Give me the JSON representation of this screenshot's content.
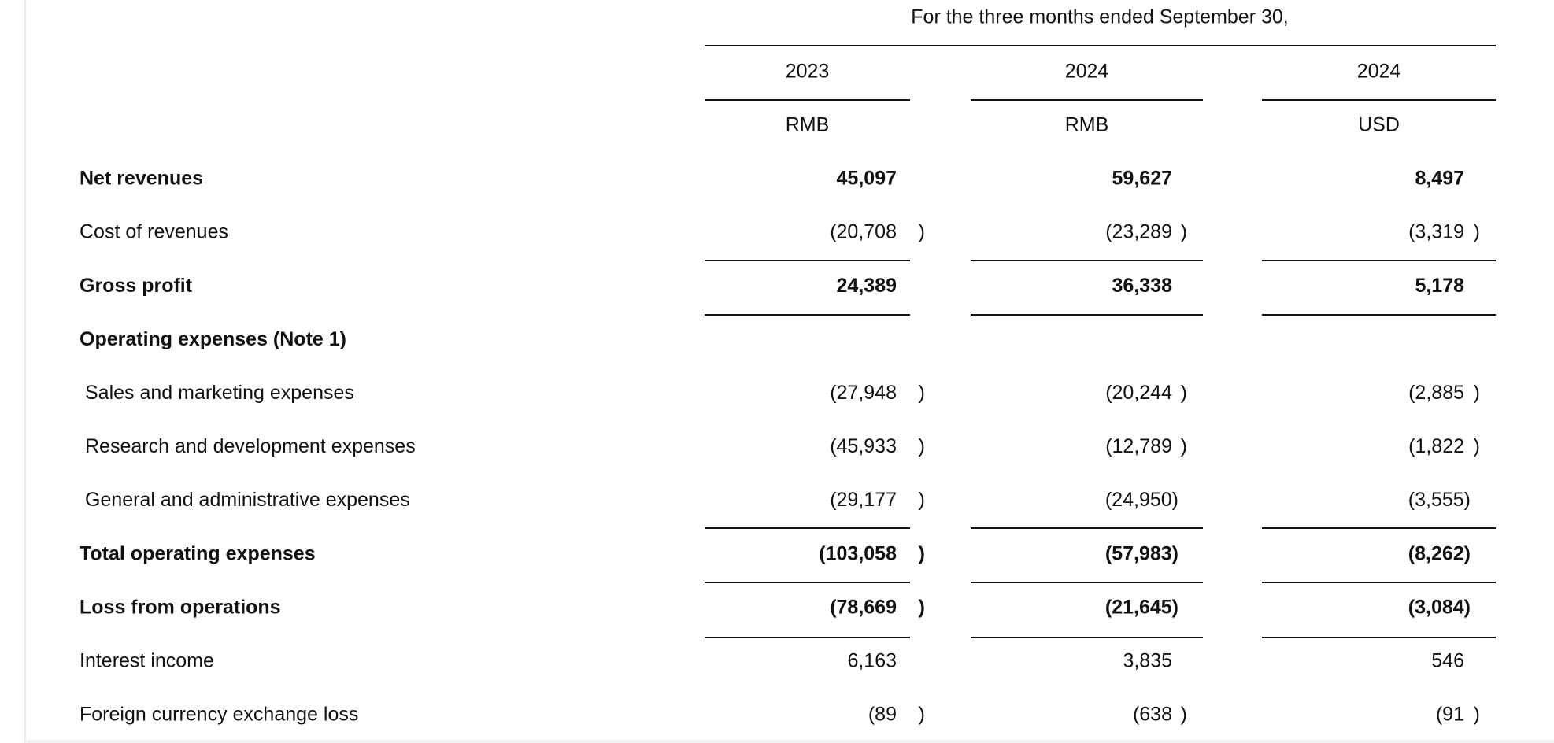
{
  "header": {
    "period": "For the three months ended September 30,",
    "years": [
      "2023",
      "2024",
      "2024"
    ],
    "currencies": [
      "RMB",
      "RMB",
      "USD"
    ]
  },
  "table": {
    "rows": [
      {
        "label": "Net revenues",
        "bold": true,
        "indent": false,
        "cells": [
          {
            "text": "45,097"
          },
          {
            "text": "59,627"
          },
          {
            "text": "8,497"
          }
        ]
      },
      {
        "label": "Cost of revenues",
        "bold": false,
        "indent": false,
        "cells": [
          {
            "text": "(20,708",
            "paren": ")"
          },
          {
            "text": "(23,289",
            "paren": ")"
          },
          {
            "text": "(3,319",
            "paren": ")"
          }
        ]
      },
      {
        "label": "Gross profit",
        "bold": true,
        "indent": false,
        "cells": [
          {
            "text": "24,389"
          },
          {
            "text": "36,338"
          },
          {
            "text": "5,178"
          }
        ]
      },
      {
        "label": "Operating expenses (Note 1)",
        "bold": true,
        "indent": false,
        "cells": []
      },
      {
        "label": "Sales and marketing expenses",
        "bold": false,
        "indent": true,
        "cells": [
          {
            "text": "(27,948",
            "paren": ")"
          },
          {
            "text": "(20,244",
            "paren": ")"
          },
          {
            "text": "(2,885",
            "paren": ")"
          }
        ]
      },
      {
        "label": "Research and development expenses",
        "bold": false,
        "indent": true,
        "cells": [
          {
            "text": "(45,933",
            "paren": ")"
          },
          {
            "text": "(12,789",
            "paren": ")"
          },
          {
            "text": "(1,822",
            "paren": ")"
          }
        ]
      },
      {
        "label": "General and administrative expenses",
        "bold": false,
        "indent": true,
        "cells": [
          {
            "text": "(29,177",
            "paren": ")"
          },
          {
            "text": "(24,950)"
          },
          {
            "text": "(3,555)"
          }
        ]
      },
      {
        "label": "Total operating expenses",
        "bold": true,
        "indent": false,
        "cells": [
          {
            "text": "(103,058",
            "paren": ")"
          },
          {
            "text": "(57,983)"
          },
          {
            "text": "(8,262)"
          }
        ]
      },
      {
        "label": "Loss from operations",
        "bold": true,
        "indent": false,
        "cells": [
          {
            "text": "(78,669",
            "paren": ")"
          },
          {
            "text": "(21,645)"
          },
          {
            "text": "(3,084)"
          }
        ]
      },
      {
        "label": "Interest income",
        "bold": false,
        "indent": false,
        "cells": [
          {
            "text": "6,163"
          },
          {
            "text": "3,835"
          },
          {
            "text": "546"
          }
        ]
      },
      {
        "label": "Foreign currency exchange loss",
        "bold": false,
        "indent": false,
        "cells": [
          {
            "text": "(89",
            "paren": ")"
          },
          {
            "text": "(638",
            "paren": ")"
          },
          {
            "text": "(91",
            "paren": ")"
          }
        ]
      }
    ]
  }
}
